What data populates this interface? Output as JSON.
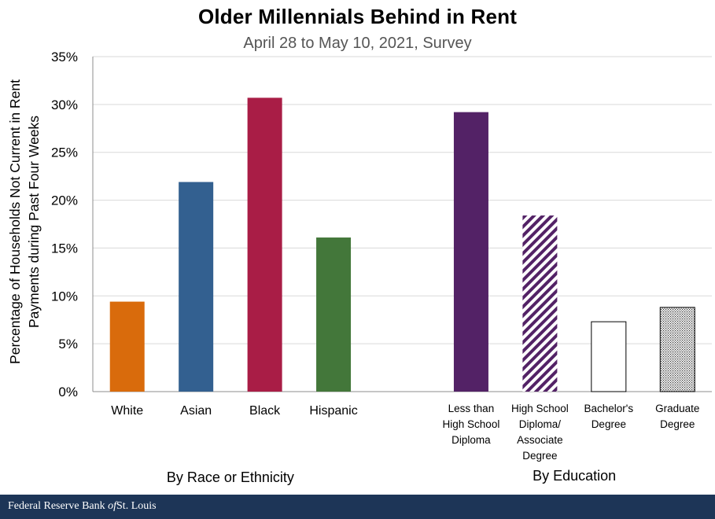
{
  "chart_data": {
    "type": "bar",
    "title": "Older Millennials Behind in Rent",
    "subtitle": "April 28 to May 10, 2021, Survey",
    "ylabel": [
      "Percentage of Households Not Current in Rent",
      "Payments during Past Four Weeks"
    ],
    "ylim": [
      0,
      35
    ],
    "yticks": [
      "0%",
      "5%",
      "10%",
      "15%",
      "20%",
      "25%",
      "30%",
      "35%"
    ],
    "grid": true,
    "groups": [
      {
        "label": "By Race or Ethnicity",
        "bars": [
          {
            "category": "White",
            "value": 9.4,
            "color": "#d96b0c",
            "pattern": "solid"
          },
          {
            "category": "Asian",
            "value": 21.9,
            "color": "#336090",
            "pattern": "solid"
          },
          {
            "category": "Black",
            "value": 30.7,
            "color": "#a91d46",
            "pattern": "solid"
          },
          {
            "category": "Hispanic",
            "value": 16.1,
            "color": "#43773a",
            "pattern": "solid"
          }
        ]
      },
      {
        "label": "By Education",
        "bars": [
          {
            "category": "Less than High School Diploma",
            "lines": [
              "Less than",
              "High School",
              "Diploma"
            ],
            "value": 29.2,
            "color": "#532266",
            "pattern": "solid"
          },
          {
            "category": "High School Diploma/ Associate Degree",
            "lines": [
              "High School",
              "Diploma/",
              "Associate",
              "Degree"
            ],
            "value": 18.4,
            "color": "#532266",
            "pattern": "diagonal-stripes"
          },
          {
            "category": "Bachelor's Degree",
            "lines": [
              "Bachelor's",
              "Degree"
            ],
            "value": 7.3,
            "color": "#000000",
            "pattern": "outline"
          },
          {
            "category": "Graduate Degree",
            "lines": [
              "Graduate",
              "Degree"
            ],
            "value": 8.8,
            "color": "#000000",
            "pattern": "dots"
          }
        ]
      }
    ]
  },
  "footer": {
    "bank_prefix": "Federal Reserve Bank ",
    "bank_of": "of",
    "bank_city": "St. Louis",
    "background": "#1d3557"
  }
}
